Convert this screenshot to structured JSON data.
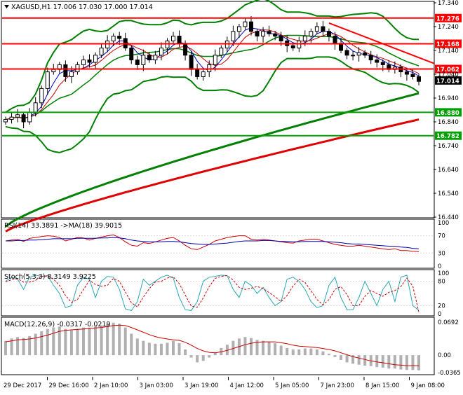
{
  "colors": {
    "background": "#ffffff",
    "grid": "#d9d9d9",
    "candle": "#000000",
    "level_line": "#ff0000",
    "level_label_bg": "#ff0000",
    "trend_line": "#ff0000",
    "green_dark": "#008000",
    "green_bright": "#00a000",
    "ma200": "#e00000",
    "ma_blue": "#0000c8",
    "ma_red": "#c80000",
    "rsi": "#cc0000",
    "rsi_ma": "#0000aa",
    "stoch_main": "#2aa6b6",
    "stoch_signal": "#cc0000",
    "macd_hist": "#b0b0b0",
    "macd_signal": "#cc0000",
    "current_price_bg": "#000000"
  },
  "main_panel": {
    "title": "XAGUSD,H1  17.006 17.030 17.000 17.014",
    "y_ticks": [
      "17.340",
      "17.240",
      "17.140",
      "17.040",
      "16.940",
      "16.840",
      "16.740",
      "16.640",
      "16.540",
      "16.440"
    ],
    "levels": [
      {
        "label": "17.276",
        "value": 17.276
      },
      {
        "label": "17.168",
        "value": 17.168
      },
      {
        "label": "17.062",
        "value": 17.062
      },
      {
        "label": "16.880",
        "value": 16.88
      },
      {
        "label": "16.782",
        "value": 16.782
      }
    ],
    "current_price_label": "17.014",
    "x_labels": [
      "29 Dec 2017",
      "29 Dec 16:00",
      "2 Jan 10:00",
      "3 Jan 03:00",
      "3 Jan 19:00",
      "4 Jan 12:00",
      "5 Jan 05:00",
      "7 Jan 23:00",
      "8 Jan 15:00",
      "9 Jan 08:00"
    ]
  },
  "rsi_panel": {
    "title": "RSI(14) 33.3891  ->MA(18) 39.9015",
    "y_ticks": [
      "100",
      "70",
      "30",
      "0"
    ]
  },
  "stoch_panel": {
    "title": "Stoch(5,3,3) 8.3149 3.9225",
    "y_ticks": [
      "100",
      "80",
      "20",
      "0"
    ]
  },
  "macd_panel": {
    "title": "MACD(12,26,9) -0.0317 -0.0219",
    "y_ticks": [
      "0.0692",
      "0.00",
      "-0.0365"
    ]
  },
  "chart_data": {
    "type": "candlestick",
    "symbol": "XAGUSD",
    "timeframe": "H1",
    "last_bar": {
      "open": 17.006,
      "high": 17.03,
      "low": 17.0,
      "close": 17.014
    },
    "ylim": [
      16.44,
      17.34
    ],
    "horizontal_levels": [
      17.276,
      17.168,
      17.062,
      16.88,
      16.782
    ],
    "series": [
      {
        "name": "close",
        "values": [
          16.85,
          16.86,
          16.87,
          16.84,
          16.88,
          16.92,
          16.98,
          17.05,
          17.06,
          17.08,
          17.03,
          17.05,
          17.08,
          17.1,
          17.09,
          17.12,
          17.15,
          17.18,
          17.2,
          17.19,
          17.15,
          17.1,
          17.08,
          17.12,
          17.1,
          17.12,
          17.15,
          17.18,
          17.2,
          17.17,
          17.12,
          17.06,
          17.03,
          17.05,
          17.08,
          17.12,
          17.15,
          17.18,
          17.22,
          17.24,
          17.26,
          17.22,
          17.2,
          17.22,
          17.21,
          17.2,
          17.18,
          17.16,
          17.15,
          17.18,
          17.2,
          17.22,
          17.24,
          17.22,
          17.2,
          17.17,
          17.14,
          17.12,
          17.12,
          17.13,
          17.12,
          17.1,
          17.09,
          17.08,
          17.06,
          17.07,
          17.05,
          17.04,
          17.03,
          17.01
        ]
      },
      {
        "name": "RSI(14)",
        "values": [
          58,
          60,
          62,
          57,
          64,
          66,
          68,
          70,
          69,
          66,
          58,
          62,
          66,
          65,
          60,
          64,
          67,
          70,
          72,
          66,
          56,
          48,
          46,
          54,
          52,
          56,
          60,
          64,
          66,
          58,
          48,
          40,
          38,
          44,
          50,
          58,
          62,
          66,
          68,
          70,
          70,
          62,
          60,
          62,
          60,
          58,
          56,
          54,
          53,
          58,
          60,
          62,
          62,
          58,
          54,
          50,
          48,
          46,
          46,
          48,
          46,
          44,
          42,
          40,
          38,
          40,
          36,
          36,
          34,
          33.39
        ]
      },
      {
        "name": "RSI MA(18)",
        "values": [
          58,
          58,
          59,
          59,
          60,
          60,
          61,
          62,
          63,
          63,
          63,
          63,
          64,
          64,
          64,
          64,
          65,
          65,
          66,
          65,
          63,
          60,
          58,
          57,
          56,
          56,
          56,
          57,
          57,
          56,
          54,
          52,
          51,
          50,
          50,
          51,
          52,
          53,
          55,
          57,
          58,
          58,
          58,
          59,
          59,
          58,
          57,
          57,
          56,
          56,
          57,
          57,
          57,
          57,
          56,
          55,
          54,
          52,
          51,
          51,
          50,
          49,
          48,
          47,
          46,
          46,
          44,
          43,
          41,
          39.9
        ]
      },
      {
        "name": "Stoch %K",
        "values": [
          80,
          90,
          85,
          60,
          90,
          95,
          92,
          94,
          70,
          50,
          15,
          20,
          70,
          90,
          85,
          40,
          80,
          92,
          90,
          60,
          12,
          8,
          30,
          85,
          70,
          80,
          90,
          95,
          88,
          40,
          10,
          8,
          30,
          80,
          90,
          92,
          95,
          94,
          60,
          40,
          80,
          70,
          50,
          65,
          40,
          20,
          30,
          85,
          90,
          80,
          60,
          30,
          15,
          20,
          70,
          90,
          40,
          10,
          10,
          40,
          80,
          50,
          20,
          60,
          80,
          30,
          90,
          95,
          20,
          8.31
        ]
      },
      {
        "name": "Stoch signal",
        "values": [
          78,
          84,
          86,
          78,
          78,
          82,
          92,
          93,
          85,
          70,
          45,
          28,
          35,
          60,
          82,
          72,
          68,
          70,
          87,
          80,
          54,
          27,
          17,
          41,
          62,
          78,
          80,
          88,
          91,
          74,
          46,
          19,
          16,
          39,
          67,
          87,
          92,
          94,
          83,
          65,
          60,
          63,
          67,
          62,
          52,
          42,
          30,
          45,
          68,
          85,
          77,
          57,
          35,
          22,
          35,
          60,
          67,
          47,
          20,
          20,
          43,
          57,
          50,
          43,
          53,
          57,
          67,
          88,
          68,
          3.92
        ]
      },
      {
        "name": "MACD histogram",
        "values": [
          0.03,
          0.035,
          0.038,
          0.036,
          0.04,
          0.045,
          0.05,
          0.055,
          0.058,
          0.06,
          0.055,
          0.052,
          0.055,
          0.058,
          0.058,
          0.06,
          0.062,
          0.065,
          0.068,
          0.066,
          0.058,
          0.045,
          0.035,
          0.03,
          0.026,
          0.024,
          0.024,
          0.026,
          0.03,
          0.025,
          0.012,
          -0.005,
          -0.015,
          -0.012,
          -0.005,
          0.005,
          0.015,
          0.022,
          0.03,
          0.035,
          0.038,
          0.036,
          0.032,
          0.03,
          0.028,
          0.025,
          0.02,
          0.015,
          0.012,
          0.012,
          0.014,
          0.014,
          0.012,
          0.008,
          0.003,
          -0.004,
          -0.01,
          -0.015,
          -0.018,
          -0.02,
          -0.022,
          -0.023,
          -0.025,
          -0.026,
          -0.028,
          -0.028,
          -0.03,
          -0.031,
          -0.031,
          -0.0317
        ]
      },
      {
        "name": "MACD signal",
        "values": [
          0.028,
          0.03,
          0.032,
          0.033,
          0.034,
          0.036,
          0.039,
          0.042,
          0.046,
          0.05,
          0.052,
          0.053,
          0.054,
          0.055,
          0.056,
          0.057,
          0.058,
          0.06,
          0.062,
          0.063,
          0.062,
          0.058,
          0.053,
          0.048,
          0.043,
          0.039,
          0.036,
          0.034,
          0.032,
          0.031,
          0.027,
          0.021,
          0.014,
          0.009,
          0.006,
          0.005,
          0.007,
          0.01,
          0.014,
          0.018,
          0.022,
          0.025,
          0.027,
          0.028,
          0.028,
          0.028,
          0.026,
          0.024,
          0.021,
          0.019,
          0.018,
          0.017,
          0.016,
          0.014,
          0.012,
          0.009,
          0.005,
          0.001,
          -0.003,
          -0.006,
          -0.009,
          -0.012,
          -0.014,
          -0.016,
          -0.018,
          -0.02,
          -0.021,
          -0.022,
          -0.022,
          -0.0219
        ]
      }
    ],
    "rsi_ylim": [
      0,
      100
    ],
    "stoch_ylim": [
      0,
      100
    ],
    "macd_ylim": [
      -0.0365,
      0.0692
    ]
  }
}
